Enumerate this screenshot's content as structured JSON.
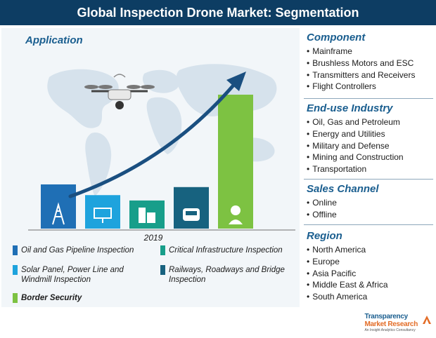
{
  "title": "Global Inspection Drone Market: Segmentation",
  "application": {
    "heading": "Application"
  },
  "chart_data": {
    "type": "bar",
    "title": "",
    "xlabel": "2019",
    "ylabel": "",
    "categories": [
      "Oil and Gas Pipeline Inspection",
      "Solar Panel, Power Line and Windmill Inspection",
      "Critical Infrastructure Inspection",
      "Railways, Roadways and Bridge Inspection",
      "Border Security"
    ],
    "values": [
      0.33,
      0.25,
      0.21,
      0.31,
      1.0
    ],
    "colors": [
      "#1f6fb5",
      "#1ea3dd",
      "#179e8a",
      "#17627f",
      "#7dc242"
    ],
    "icons": [
      "oil-tower-icon",
      "solar-panel-icon",
      "buildings-icon",
      "train-icon",
      "border-guard-icon"
    ],
    "legend": [
      {
        "label": "Oil and Gas Pipeline Inspection",
        "color": "#1f6fb5"
      },
      {
        "label": "Critical Infrastructure Inspection",
        "color": "#179e8a"
      },
      {
        "label": "Solar Panel, Power Line and Windmill Inspection",
        "color": "#1ea3dd"
      },
      {
        "label": "Railways, Roadways and Bridge Inspection",
        "color": "#17627f"
      },
      {
        "label": "Border Security",
        "color": "#7dc242"
      }
    ]
  },
  "sections": [
    {
      "heading": "Component",
      "items": [
        "Mainframe",
        "Brushless Motors and ESC",
        "Transmitters and Receivers",
        "Flight Controllers"
      ]
    },
    {
      "heading": "End-use Industry",
      "items": [
        "Oil, Gas and Petroleum",
        "Energy and Utilities",
        "Military and Defense",
        "Mining and Construction",
        "Transportation"
      ]
    },
    {
      "heading": "Sales Channel",
      "items": [
        "Online",
        "Offline"
      ]
    },
    {
      "heading": "Region",
      "items": [
        "North America",
        "Europe",
        "Asia Pacific",
        "Middle East & Africa",
        "South America"
      ]
    }
  ],
  "brand": {
    "line1": "Transparency",
    "line2": "Market Research",
    "tagline": "An Insight Analytics Consultancy"
  },
  "colors": {
    "title_bg": "#0d3d63",
    "heading": "#1a5e8f",
    "arrow": "#1a4f80",
    "map": "#d6e2ec"
  }
}
